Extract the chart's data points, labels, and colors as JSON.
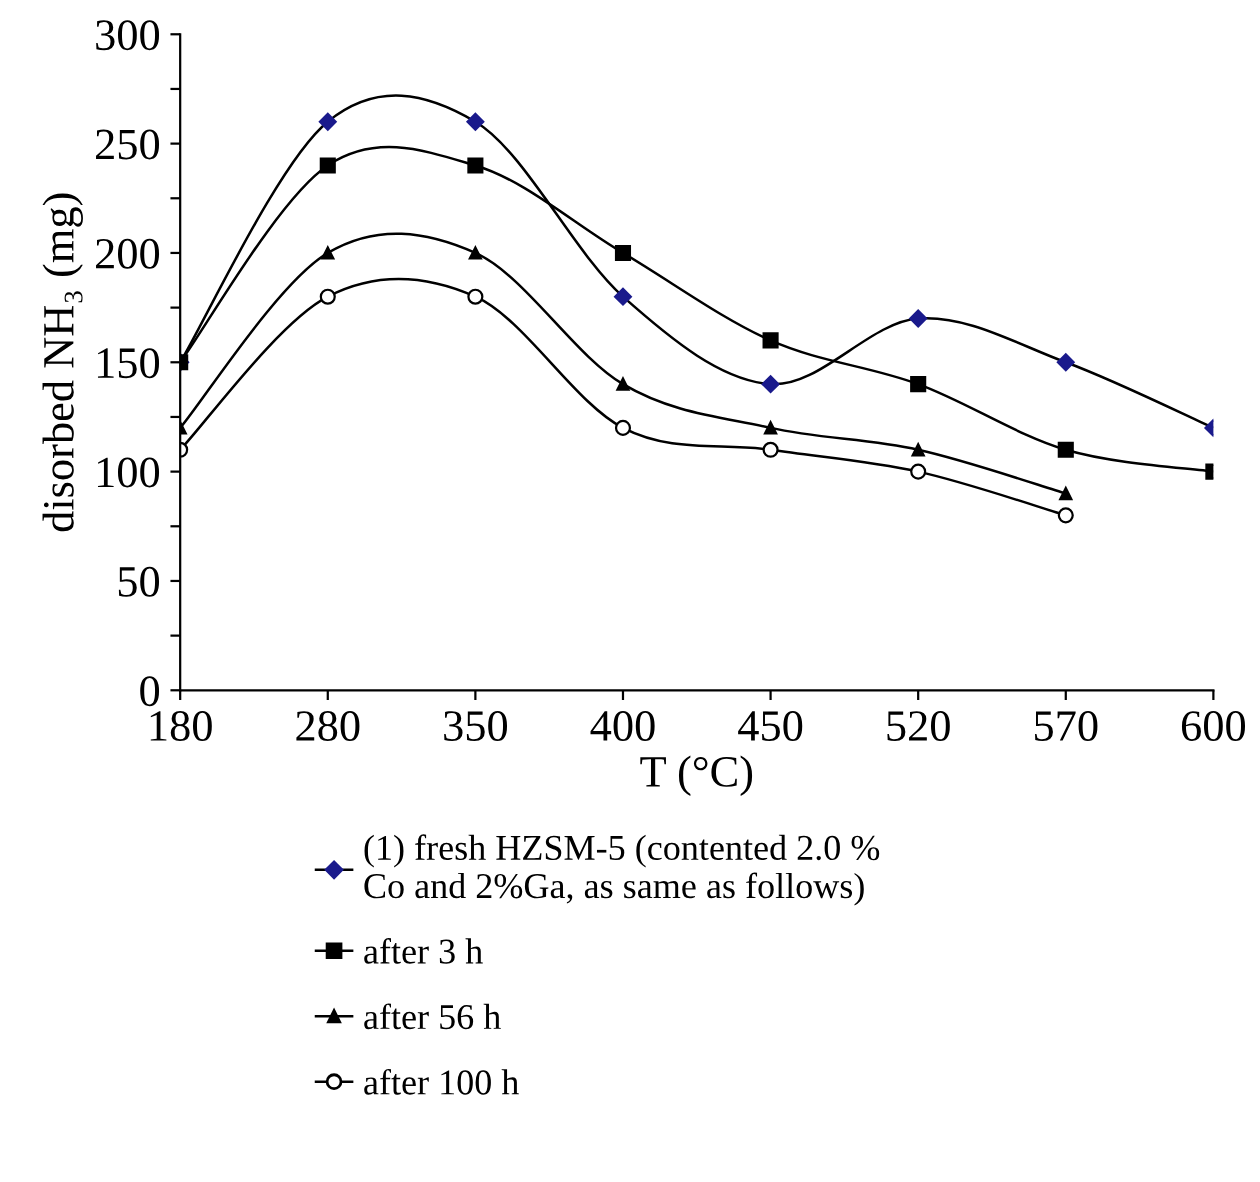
{
  "chart_data": {
    "type": "line",
    "xlabel": "T (°C)",
    "ylabel": "disorbed NH₃ (mg)",
    "categories": [
      "180",
      "280",
      "350",
      "400",
      "450",
      "520",
      "570",
      "600"
    ],
    "ylim": [
      0,
      300
    ],
    "yticks": [
      0,
      {
        "value": 25,
        "label": null
      },
      50,
      {
        "value": 75,
        "label": null
      },
      100,
      {
        "value": 125,
        "label": null
      },
      150,
      {
        "value": 175,
        "label": null
      },
      200,
      {
        "value": 225,
        "label": null
      },
      250,
      {
        "value": 275,
        "label": null
      },
      300
    ],
    "grid": false,
    "legend": "bottom",
    "line_style": "solid",
    "series": [
      {
        "name": "(1) fresh HZSM-5 (contented 2.0 %\nCo and 2%Ga, as same as follows)",
        "color": "#1a1a8c",
        "marker": "diamond",
        "values": [
          150,
          260,
          260,
          180,
          140,
          170,
          150,
          120
        ]
      },
      {
        "name": "after 3 h",
        "color": "#000000",
        "marker": "square",
        "values": [
          150,
          240,
          240,
          200,
          160,
          140,
          110,
          100
        ]
      },
      {
        "name": "after 56 h",
        "color": "#000000",
        "marker": "triangle",
        "values": [
          120,
          200,
          200,
          140,
          120,
          110,
          90,
          null
        ]
      },
      {
        "name": "after 100 h",
        "color": "#000000",
        "marker": "circle",
        "values": [
          110,
          180,
          180,
          120,
          110,
          100,
          80,
          null
        ]
      }
    ]
  }
}
